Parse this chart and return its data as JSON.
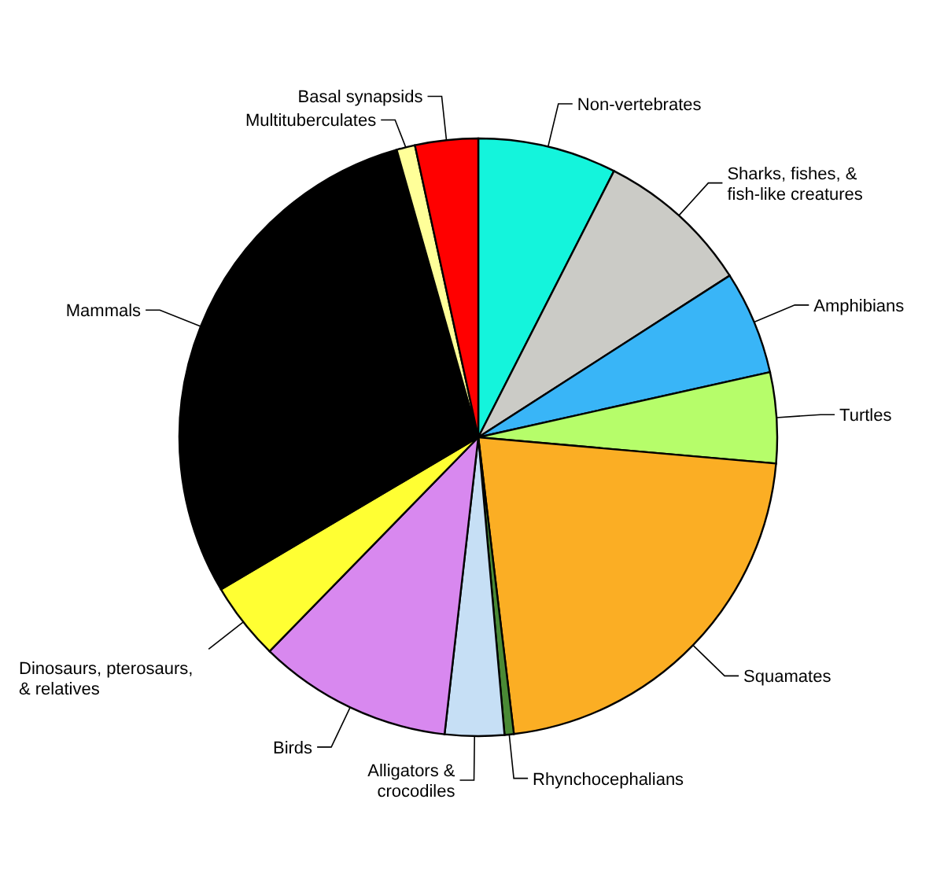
{
  "chart_data": {
    "type": "pie",
    "categories": [
      "Non-vertebrates",
      "Sharks, fishes, & fish-like creatures",
      "Amphibians",
      "Turtles",
      "Squamates",
      "Rhynchocephalians",
      "Alligators & crocodiles",
      "Birds",
      "Dinosaurs, pterosaurs, & relatives",
      "Mammals",
      "Multituberculates",
      "Basal synapsids"
    ],
    "values": [
      7.5,
      8.4,
      5.6,
      4.9,
      21.7,
      0.5,
      3.2,
      10.5,
      4.2,
      29.1,
      1.0,
      3.4
    ],
    "colors": [
      "#14f4dc",
      "#cbcbc6",
      "#39b5f7",
      "#b6fd6a",
      "#fbae24",
      "#4a8a35",
      "#c6dff5",
      "#d888ef",
      "#ffff33",
      "#000000",
      "#ffff99",
      "#ff0000"
    ]
  }
}
